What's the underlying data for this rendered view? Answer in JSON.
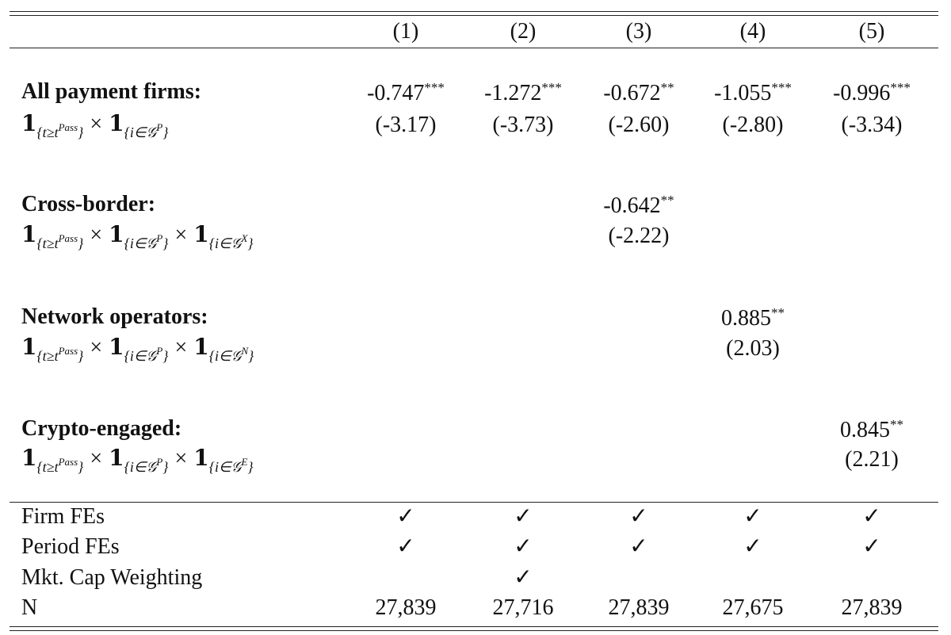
{
  "table": {
    "columns": [
      "(1)",
      "(2)",
      "(3)",
      "(4)",
      "(5)"
    ],
    "panels": [
      {
        "label": "All payment firms:",
        "formula": [
          {
            "base": "1",
            "sub": "{t≥t",
            "sup": "Pass",
            "end": "}"
          },
          {
            "op": "×"
          },
          {
            "base": "1",
            "sub": "{i∈𝒢",
            "sup": "P",
            "end": "}"
          }
        ],
        "cells": [
          {
            "coef": "-0.747",
            "stars": "***",
            "t": "(-3.17)"
          },
          {
            "coef": "-1.272",
            "stars": "***",
            "t": "(-3.73)"
          },
          {
            "coef": "-0.672",
            "stars": "**",
            "t": "(-2.60)"
          },
          {
            "coef": "-1.055",
            "stars": "***",
            "t": "(-2.80)"
          },
          {
            "coef": "-0.996",
            "stars": "***",
            "t": "(-3.34)"
          }
        ]
      },
      {
        "label": "Cross-border:",
        "formula": [
          {
            "base": "1",
            "sub": "{t≥t",
            "sup": "Pass",
            "end": "}"
          },
          {
            "op": "×"
          },
          {
            "base": "1",
            "sub": "{i∈𝒢",
            "sup": "P",
            "end": "}"
          },
          {
            "op": "×"
          },
          {
            "base": "1",
            "sub": "{i∈𝒢",
            "sup": "X",
            "end": "}"
          }
        ],
        "cells": [
          null,
          null,
          {
            "coef": "-0.642",
            "stars": "**",
            "t": "(-2.22)"
          },
          null,
          null
        ]
      },
      {
        "label": "Network operators:",
        "formula": [
          {
            "base": "1",
            "sub": "{t≥t",
            "sup": "Pass",
            "end": "}"
          },
          {
            "op": "×"
          },
          {
            "base": "1",
            "sub": "{i∈𝒢",
            "sup": "P",
            "end": "}"
          },
          {
            "op": "×"
          },
          {
            "base": "1",
            "sub": "{i∈𝒢",
            "sup": "N",
            "end": "}"
          }
        ],
        "cells": [
          null,
          null,
          null,
          {
            "coef": "0.885",
            "stars": "**",
            "t": "(2.03)"
          },
          null
        ]
      },
      {
        "label": "Crypto-engaged:",
        "formula": [
          {
            "base": "1",
            "sub": "{t≥t",
            "sup": "Pass",
            "end": "}"
          },
          {
            "op": "×"
          },
          {
            "base": "1",
            "sub": "{i∈𝒢",
            "sup": "P",
            "end": "}"
          },
          {
            "op": "×"
          },
          {
            "base": "1",
            "sub": "{i∈𝒢",
            "sup": "E",
            "end": "}"
          }
        ],
        "cells": [
          null,
          null,
          null,
          null,
          {
            "coef": "0.845",
            "stars": "**",
            "t": "(2.21)"
          }
        ]
      }
    ],
    "footer": [
      {
        "label": "Firm FEs",
        "cells": [
          "✓",
          "✓",
          "✓",
          "✓",
          "✓"
        ]
      },
      {
        "label": "Period FEs",
        "cells": [
          "✓",
          "✓",
          "✓",
          "✓",
          "✓"
        ]
      },
      {
        "label": "Mkt. Cap Weighting",
        "cells": [
          null,
          "✓",
          null,
          null,
          null
        ]
      },
      {
        "label": "N",
        "cells": [
          "27,839",
          "27,716",
          "27,839",
          "27,675",
          "27,839"
        ]
      }
    ]
  }
}
